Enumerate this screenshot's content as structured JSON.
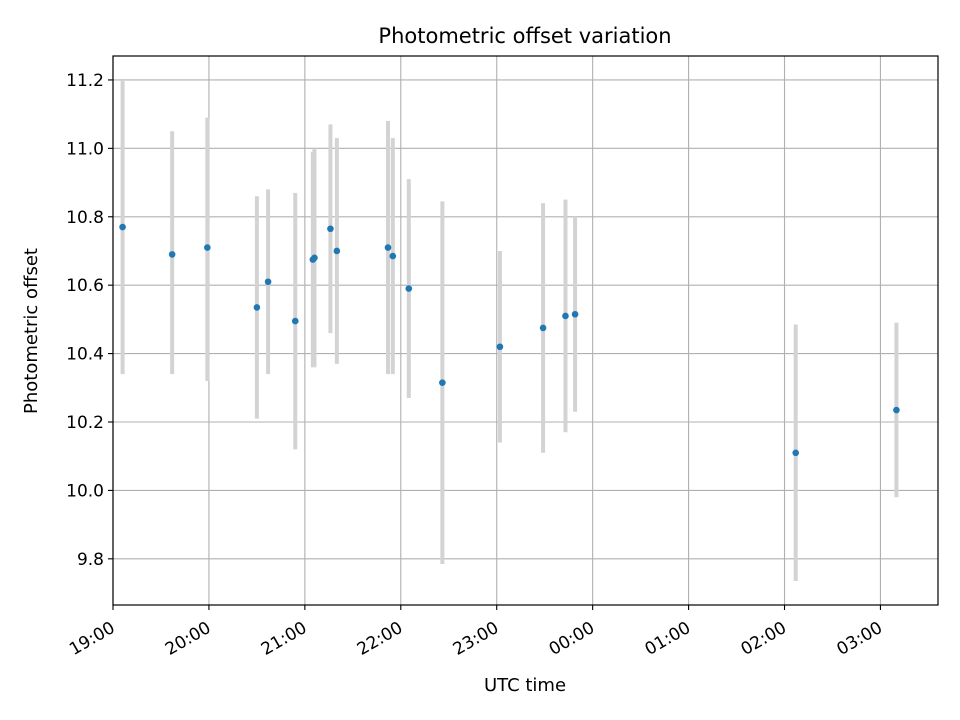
{
  "chart_data": {
    "type": "scatter",
    "title": "Photometric offset variation",
    "xlabel": "UTC time",
    "ylabel": "Photometric offset",
    "x_ticks": [
      "19:00",
      "20:00",
      "21:00",
      "22:00",
      "23:00",
      "00:00",
      "01:00",
      "02:00",
      "03:00"
    ],
    "y_ticks": [
      "9.8",
      "10.0",
      "10.2",
      "10.4",
      "10.6",
      "10.8",
      "11.0",
      "11.2"
    ],
    "xlim": [
      "19:00",
      "03:36"
    ],
    "ylim": [
      9.665,
      11.27
    ],
    "grid": true,
    "points": [
      {
        "t": "19:06",
        "y": 10.77,
        "err_low": 10.34,
        "err_high": 11.2
      },
      {
        "t": "19:37",
        "y": 10.69,
        "err_low": 10.34,
        "err_high": 11.05
      },
      {
        "t": "19:59",
        "y": 10.71,
        "err_low": 10.32,
        "err_high": 11.09
      },
      {
        "t": "20:30",
        "y": 10.535,
        "err_low": 10.21,
        "err_high": 10.86
      },
      {
        "t": "20:37",
        "y": 10.61,
        "err_low": 10.34,
        "err_high": 10.88
      },
      {
        "t": "20:54",
        "y": 10.495,
        "err_low": 10.12,
        "err_high": 10.87
      },
      {
        "t": "21:05",
        "y": 10.675,
        "err_low": 10.36,
        "err_high": 10.99
      },
      {
        "t": "21:06",
        "y": 10.68,
        "err_low": 10.36,
        "err_high": 11.0
      },
      {
        "t": "21:16",
        "y": 10.765,
        "err_low": 10.46,
        "err_high": 11.07
      },
      {
        "t": "21:20",
        "y": 10.7,
        "err_low": 10.37,
        "err_high": 11.03
      },
      {
        "t": "21:52",
        "y": 10.71,
        "err_low": 10.34,
        "err_high": 11.08
      },
      {
        "t": "21:55",
        "y": 10.685,
        "err_low": 10.34,
        "err_high": 11.03
      },
      {
        "t": "22:05",
        "y": 10.59,
        "err_low": 10.27,
        "err_high": 10.91
      },
      {
        "t": "22:26",
        "y": 10.315,
        "err_low": 9.785,
        "err_high": 10.845
      },
      {
        "t": "23:02",
        "y": 10.42,
        "err_low": 10.14,
        "err_high": 10.7
      },
      {
        "t": "23:29",
        "y": 10.475,
        "err_low": 10.11,
        "err_high": 10.84
      },
      {
        "t": "23:43",
        "y": 10.51,
        "err_low": 10.17,
        "err_high": 10.85
      },
      {
        "t": "23:49",
        "y": 10.515,
        "err_low": 10.23,
        "err_high": 10.8
      },
      {
        "t": "02:07",
        "y": 10.11,
        "err_low": 9.735,
        "err_high": 10.485
      },
      {
        "t": "03:10",
        "y": 10.235,
        "err_low": 9.98,
        "err_high": 10.49
      }
    ],
    "colors": {
      "marker": "#1f77b4",
      "errorbar": "#d3d3d3",
      "grid": "#b0b0b0",
      "axes": "#000000"
    }
  }
}
